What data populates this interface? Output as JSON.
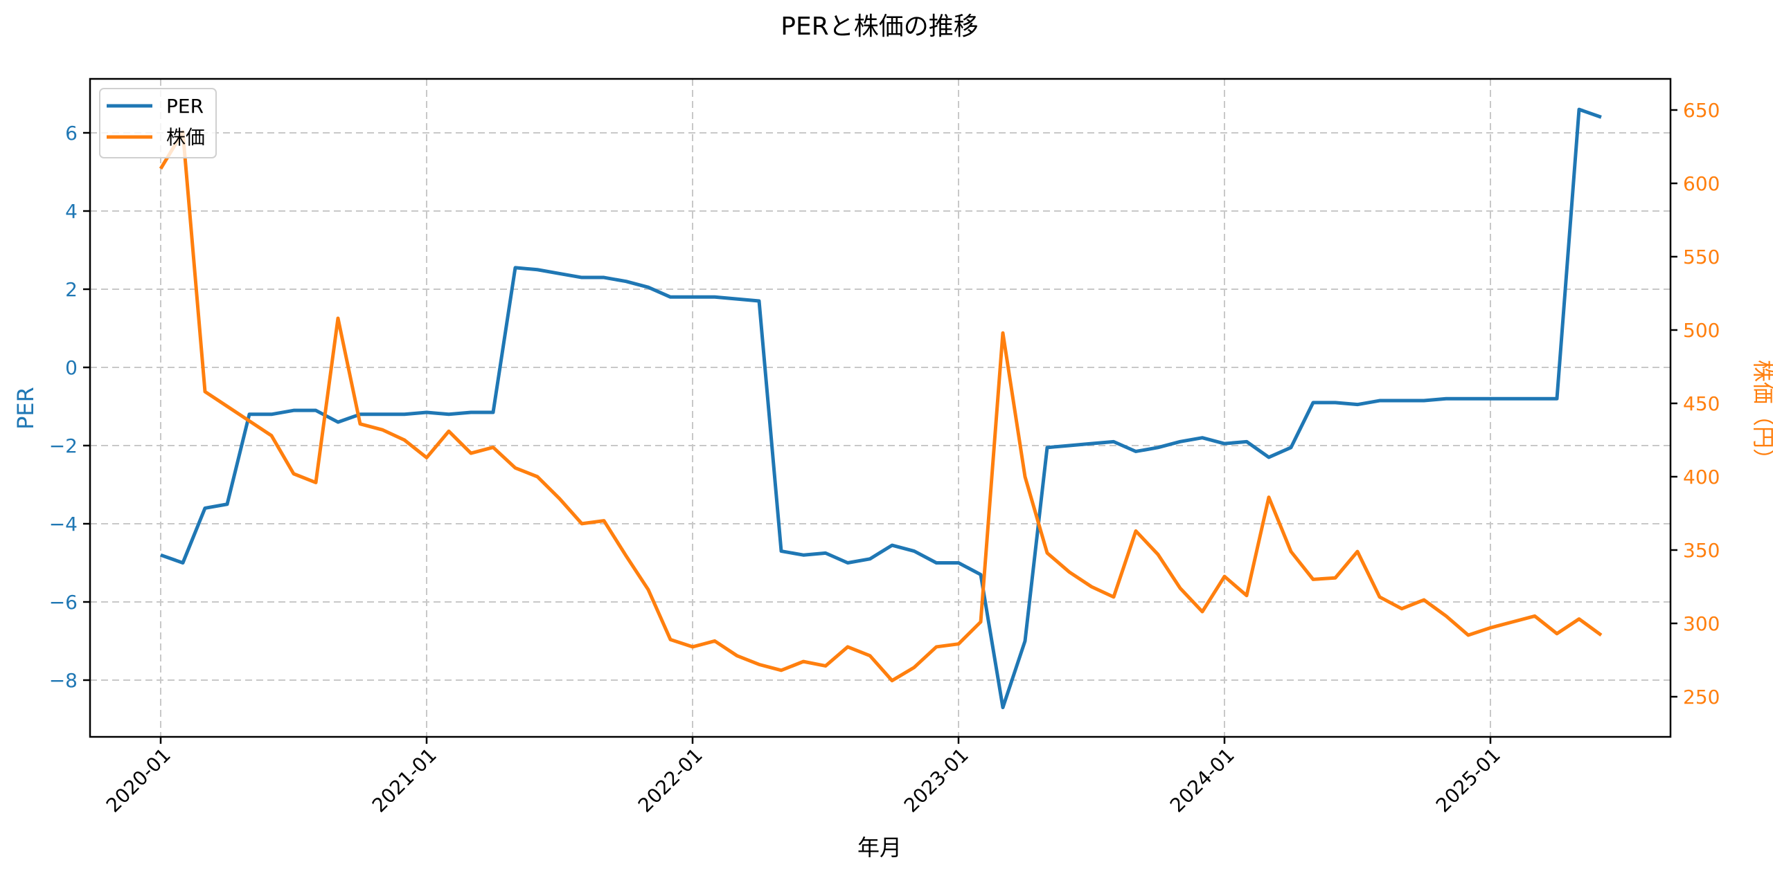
{
  "chart_data": {
    "type": "line",
    "title": "PERと株価の推移",
    "xlabel": "年月",
    "ylabel": "PER",
    "ylabel_right": "株価（円）",
    "ylim": [
      -9.6,
      7.4
    ],
    "ylim_right": [
      223,
      672
    ],
    "grid": true,
    "legend_position": "upper left",
    "x_tick_labels": [
      "2020-01",
      "2021-01",
      "2022-01",
      "2023-01",
      "2024-01",
      "2025-01"
    ],
    "y_ticks_left": [
      -8,
      -6,
      -4,
      -2,
      0,
      2,
      4,
      6
    ],
    "y_ticks_right": [
      250,
      300,
      350,
      400,
      450,
      500,
      550,
      600,
      650
    ],
    "x": [
      "2020-01",
      "2020-02",
      "2020-03",
      "2020-04",
      "2020-05",
      "2020-06",
      "2020-07",
      "2020-08",
      "2020-09",
      "2020-10",
      "2020-11",
      "2020-12",
      "2021-01",
      "2021-02",
      "2021-03",
      "2021-04",
      "2021-05",
      "2021-06",
      "2021-07",
      "2021-08",
      "2021-09",
      "2021-10",
      "2021-11",
      "2021-12",
      "2022-01",
      "2022-02",
      "2022-03",
      "2022-04",
      "2022-05",
      "2022-06",
      "2022-07",
      "2022-08",
      "2022-09",
      "2022-10",
      "2022-11",
      "2022-12",
      "2023-01",
      "2023-02",
      "2023-03",
      "2023-04",
      "2023-05",
      "2023-06",
      "2023-07",
      "2023-08",
      "2023-09",
      "2023-10",
      "2023-11",
      "2023-12",
      "2024-01",
      "2024-02",
      "2024-03",
      "2024-04",
      "2024-05",
      "2024-06",
      "2024-07",
      "2024-08",
      "2024-09",
      "2024-10",
      "2024-11",
      "2024-12",
      "2025-01",
      "2025-02",
      "2025-03",
      "2025-04",
      "2025-05",
      "2025-06"
    ],
    "series": [
      {
        "name": "PER",
        "axis": "left",
        "color": "#1f77b4",
        "values": [
          -4.8,
          -5.0,
          -3.6,
          -3.5,
          -1.2,
          -1.2,
          -1.1,
          -1.1,
          -1.4,
          -1.2,
          -1.2,
          -1.2,
          -1.15,
          -1.2,
          -1.15,
          -1.15,
          2.55,
          2.5,
          2.4,
          2.3,
          2.3,
          2.2,
          2.05,
          1.8,
          1.8,
          1.8,
          1.75,
          1.7,
          -4.7,
          -4.8,
          -4.75,
          -5.0,
          -4.9,
          -4.55,
          -4.7,
          -5.0,
          -5.0,
          -5.3,
          -8.7,
          -7.0,
          -2.05,
          -2.0,
          -1.95,
          -1.9,
          -2.15,
          -2.05,
          -1.9,
          -1.8,
          -1.95,
          -1.9,
          -2.3,
          -2.05,
          -0.9,
          -0.9,
          -0.95,
          -0.85,
          -0.85,
          -0.85,
          -0.8,
          -0.8,
          -0.8,
          -0.8,
          -0.8,
          -0.8,
          6.6,
          6.4
        ]
      },
      {
        "name": "株価",
        "axis": "right",
        "color": "#ff7f0e",
        "values": [
          610,
          635,
          458,
          448,
          438,
          428,
          402,
          396,
          508,
          436,
          432,
          425,
          413,
          431,
          416,
          420,
          406,
          400,
          385,
          368,
          370,
          346,
          323,
          289,
          284,
          288,
          278,
          272,
          268,
          274,
          271,
          284,
          278,
          261,
          270,
          284,
          286,
          301,
          498,
          400,
          348,
          335,
          325,
          318,
          363,
          347,
          324,
          308,
          332,
          319,
          386,
          349,
          330,
          331,
          349,
          318,
          310,
          316,
          305,
          292,
          297,
          301,
          305,
          293,
          303,
          292
        ]
      }
    ]
  },
  "legend": {
    "per_label": "PER",
    "price_label": "株価"
  }
}
